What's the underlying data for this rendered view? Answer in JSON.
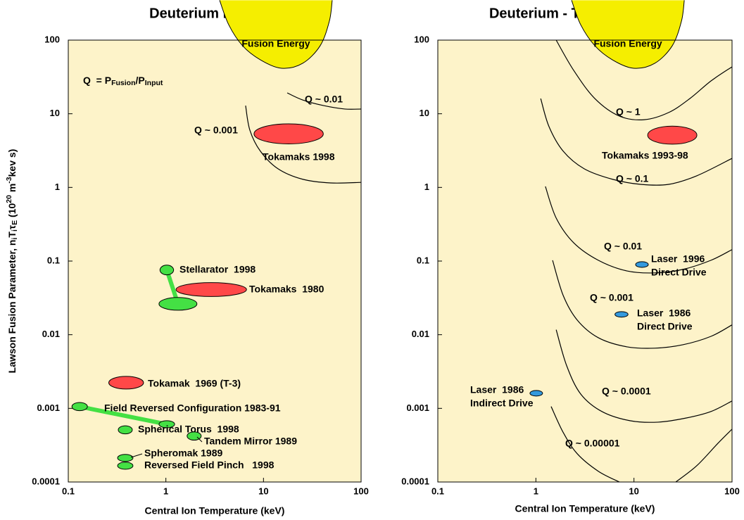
{
  "chart_data": [
    {
      "type": "contour",
      "title": "Deuterium Plasmas",
      "x_label": "Central Ion Temperature (keV)",
      "y_label": [
        {
          "text": "Lawson Fusion Parameter, n"
        },
        {
          "text": "i",
          "script": "sub"
        },
        {
          "text": "T"
        },
        {
          "text": "i",
          "script": "sub"
        },
        {
          "text": "τ"
        },
        {
          "text": "E",
          "script": "sub"
        },
        {
          "text": " (10"
        },
        {
          "text": "20",
          "script": "sup"
        },
        {
          "text": " m"
        },
        {
          "text": "-3",
          "script": "sup"
        },
        {
          "text": "kev s)"
        }
      ],
      "annotation": [
        {
          "text": "Q  = P"
        },
        {
          "text": "Fusion",
          "script": "sub"
        },
        {
          "text": "/P"
        },
        {
          "text": "Input",
          "script": "sub"
        }
      ],
      "xscale": "log",
      "yscale": "log",
      "xlim": [
        0.1,
        100
      ],
      "ylim": [
        0.0001,
        100
      ],
      "xticks": [
        0.1,
        1,
        10,
        100
      ],
      "yticks": [
        0.0001,
        0.001,
        0.01,
        0.1,
        1,
        10,
        100
      ],
      "background": "#fdf3c9",
      "fusion_region": {
        "label": "Fusion Energy",
        "color": "#f5ee00",
        "x": [
          3.55,
          4.4,
          6.1,
          9.3,
          15.3,
          25.2,
          38.1,
          47.3,
          50.6
        ],
        "y": [
          348,
          162,
          84,
          54,
          41.5,
          48.4,
          84,
          181,
          348
        ]
      },
      "contours": [
        {
          "name": "Q ~ 0.01",
          "x": [
            17.5,
            25.2,
            41.4,
            68,
            100
          ],
          "y": [
            19.2,
            15.4,
            12.9,
            11.6,
            11.6
          ]
        },
        {
          "name": "Q ~ 0.001",
          "x": [
            6.56,
            7.25,
            9.3,
            14.1,
            25.2,
            48.9,
            100
          ],
          "y": [
            12.9,
            6,
            3.1,
            1.79,
            1.29,
            1.15,
            1.17
          ]
        }
      ],
      "regions": [
        {
          "label": [
            "Tokamaks 1998"
          ],
          "color": "#ff4848",
          "areas": [
            {
              "x": [
                8,
                41
              ],
              "y": [
                3.9,
                7.3
              ]
            }
          ]
        },
        {
          "label": [
            "Tokamaks  1980"
          ],
          "color": "#ff4848",
          "areas": [
            {
              "x": [
                1.27,
                6.7
              ],
              "y": [
                0.033,
                0.051
              ]
            }
          ]
        },
        {
          "label": [
            "Stellarator  1998"
          ],
          "color": "#44e044",
          "areas": [
            {
              "x": [
                0.87,
                1.2
              ],
              "y": [
                0.065,
                0.088
              ]
            },
            {
              "x": [
                0.85,
                2.08
              ],
              "y": [
                0.0215,
                0.032
              ]
            }
          ]
        },
        {
          "label": [
            "Tokamak  1969 (T-3)"
          ],
          "color": "#ff4848",
          "areas": [
            {
              "x": [
                0.26,
                0.59
              ],
              "y": [
                0.00183,
                0.00272
              ]
            }
          ]
        },
        {
          "label": [
            "Field Reversed Configuration 1983-91"
          ],
          "color": "#44e044",
          "areas": [
            {
              "x": [
                0.109,
                0.157
              ],
              "y": [
                0.00093,
                0.0012
              ]
            },
            {
              "x": [
                0.85,
                1.23
              ],
              "y": [
                0.000545,
                0.00068
              ]
            }
          ]
        },
        {
          "label": [
            "Spherical Torus  1998"
          ],
          "color": "#44e044",
          "areas": [
            {
              "x": [
                0.325,
                0.453
              ],
              "y": [
                0.00045,
                0.00058
              ]
            }
          ]
        },
        {
          "label": [
            "Tandem Mirror 1989"
          ],
          "color": "#44e044",
          "areas": [
            {
              "x": [
                1.65,
                2.3
              ],
              "y": [
                0.00037,
                0.00048
              ]
            }
          ]
        },
        {
          "label": [
            "Spheromak 1989"
          ],
          "color": "#44e044",
          "areas": [
            {
              "x": [
                0.32,
                0.46
              ],
              "y": [
                0.00019,
                0.000237
              ]
            }
          ]
        },
        {
          "label": [
            "Reversed Field Pinch   1998"
          ],
          "color": "#44e044",
          "areas": [
            {
              "x": [
                0.32,
                0.46
              ],
              "y": [
                0.000149,
                0.000186
              ]
            }
          ]
        }
      ]
    },
    {
      "type": "contour",
      "title": "Deuterium - Tritium Plasmas",
      "x_label": "Central Ion Temperature (keV)",
      "xscale": "log",
      "yscale": "log",
      "xlim": [
        0.1,
        100
      ],
      "ylim": [
        0.0001,
        100
      ],
      "xticks": [
        0.1,
        1,
        10,
        100
      ],
      "yticks": [
        0.0001,
        0.001,
        0.01,
        0.1,
        1,
        10,
        100
      ],
      "background": "#fdf3c9",
      "fusion_region": {
        "label": "Fusion Energy",
        "color": "#f5ee00",
        "x": [
          2.31,
          2.86,
          3.99,
          6.03,
          9.9,
          16.3,
          24.6,
          30.5,
          32.6
        ],
        "y": [
          348,
          162,
          84,
          54,
          41.5,
          48.4,
          84,
          181,
          348
        ]
      },
      "contours": [
        {
          "name": "Q ~ 1",
          "x": [
            1.61,
            2.43,
            3.99,
            7.1,
            12.7,
            22.6,
            37.2,
            61,
            100
          ],
          "y": [
            100,
            38.8,
            16.1,
            9.3,
            8.3,
            10.4,
            16.1,
            27.9,
            43.4
          ]
        },
        {
          "name": "Q ~ 0.1",
          "x": [
            1.12,
            1.36,
            1.9,
            3.11,
            6.03,
            11.7,
            22.6,
            43.8,
            100
          ],
          "y": [
            16.1,
            6.7,
            3.1,
            1.79,
            1.29,
            1.1,
            1.1,
            1.44,
            2.48
          ]
        },
        {
          "name": "Q ~ 0.01",
          "x": [
            1.25,
            1.61,
            2.43,
            4.33,
            8.4,
            16.3,
            31.5,
            61,
            100
          ],
          "y": [
            1.03,
            0.384,
            0.177,
            0.1025,
            0.0736,
            0.069,
            0.077,
            0.1025,
            0.143
          ]
        },
        {
          "name": "Q ~ 0.001",
          "x": [
            1.48,
            1.9,
            2.64,
            4.33,
            8.4,
            16.3,
            31.5,
            61,
            100
          ],
          "y": [
            0.1025,
            0.034,
            0.0158,
            0.0091,
            0.00686,
            0.00656,
            0.0073,
            0.0095,
            0.0136
          ]
        },
        {
          "name": "Q ~ 0.0001",
          "x": [
            1.61,
            2.06,
            2.86,
            4.71,
            9.1,
            17.7,
            34.2,
            61,
            100
          ],
          "y": [
            0.0117,
            0.00379,
            0.00157,
            0.000906,
            0.00068,
            0.00065,
            0.00074,
            0.000906,
            0.00126
          ]
        },
        {
          "name": "Q ~ 0.00001",
          "x": [
            1.43,
            1.9,
            2.64,
            4.33,
            7.1,
            null,
            26.7,
            43.8,
            72,
            100
          ],
          "y": [
            0.00106,
            0.00047,
            0.000242,
            0.00014,
            0.0001,
            null,
            0.0001,
            0.000167,
            0.000337,
            0.000522
          ]
        }
      ],
      "regions": [
        {
          "label": [
            "Tokamaks 1993-98"
          ],
          "color": "#ff4848",
          "areas": [
            {
              "x": [
                13.8,
                43.8
              ],
              "y": [
                3.86,
                6.8
              ]
            }
          ]
        },
        {
          "label": [
            "Laser  1996",
            "Direct Drive"
          ],
          "color": "#3399dd",
          "areas": [
            {
              "x": [
                10.4,
                14
              ],
              "y": [
                0.082,
                0.098
              ]
            }
          ]
        },
        {
          "label": [
            "Laser  1986",
            "Direct Drive"
          ],
          "color": "#3399dd",
          "areas": [
            {
              "x": [
                6.4,
                8.7
              ],
              "y": [
                0.0173,
                0.0206
              ]
            }
          ]
        },
        {
          "label": [
            "Laser  1986",
            "Indirect Drive"
          ],
          "color": "#3399dd",
          "areas": [
            {
              "x": [
                0.87,
                1.17
              ],
              "y": [
                0.00147,
                0.00175
              ]
            }
          ]
        }
      ]
    }
  ]
}
